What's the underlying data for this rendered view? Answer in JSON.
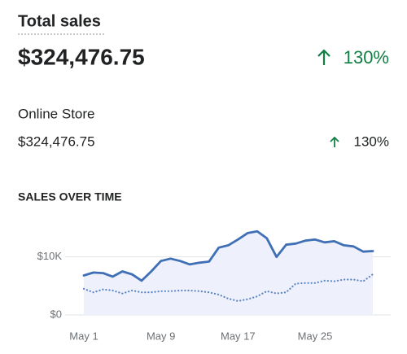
{
  "header": {
    "title": "Total sales",
    "value": "$324,476.75",
    "change": "130%"
  },
  "channel": {
    "name": "Online Store",
    "value": "$324,476.75",
    "change": "130%"
  },
  "section_title": "SALES OVER TIME",
  "chart_data": {
    "type": "line",
    "categories": [
      "May 1",
      null,
      null,
      null,
      null,
      null,
      null,
      null,
      "May 9",
      null,
      null,
      null,
      null,
      null,
      null,
      null,
      "May 17",
      null,
      null,
      null,
      null,
      null,
      null,
      null,
      "May 25",
      null,
      null,
      null,
      null,
      null,
      null
    ],
    "series": [
      {
        "color": "#3f6fb5",
        "style": "solid",
        "values": [
          6800,
          7300,
          7200,
          6600,
          7500,
          7000,
          5900,
          7500,
          9300,
          9700,
          9300,
          8700,
          9000,
          9200,
          11600,
          12000,
          13000,
          14100,
          14400,
          13200,
          10000,
          12100,
          12300,
          12800,
          13000,
          12500,
          12700,
          12000,
          11800,
          10900,
          11000
        ]
      },
      {
        "color": "#5b86c4",
        "style": "dotted",
        "values": [
          4500,
          3900,
          4400,
          4200,
          3700,
          4200,
          3900,
          3900,
          4100,
          4100,
          4200,
          4200,
          4100,
          3900,
          3500,
          2800,
          2400,
          2700,
          3200,
          4100,
          3700,
          3900,
          5400,
          5500,
          5500,
          5900,
          5800,
          6100,
          6100,
          5800,
          7000
        ]
      }
    ],
    "ylim": [
      0,
      15000
    ],
    "yticks": [
      {
        "value": 0,
        "label": "$0"
      },
      {
        "value": 10000,
        "label": "$10K"
      }
    ],
    "grid": true,
    "area_fill": "#eef0fb"
  }
}
